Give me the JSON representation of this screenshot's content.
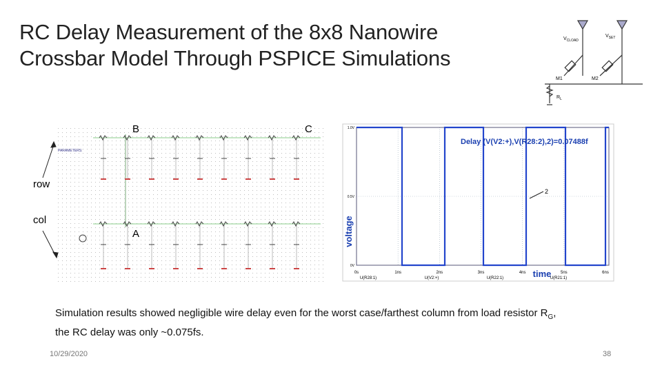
{
  "header": {
    "title_line1": "RC Delay Measurement of the 8x8 Nanowire",
    "title_line2": "Crossbar Model Through PSPICE Simulations"
  },
  "circuit": {
    "v_load": "V",
    "v_load_sub": "CLOAD",
    "v_set": "V",
    "v_set_sub": "SET",
    "m1": "M1",
    "m2": "M2",
    "rl": "R",
    "rl_sub": "L"
  },
  "schematic": {
    "label_b": "B",
    "label_c": "C",
    "label_a": "A",
    "label_row": "row",
    "label_col": "col",
    "parameters": "PARAMETERS:"
  },
  "waveform": {
    "delay": "Delay (V(V2:+),V(R28:2),2)=0.07488f",
    "y_label": "voltage",
    "x_label": "time",
    "marker": "2",
    "y_ticks": [
      "1.0V",
      "0.5V",
      "0V"
    ],
    "x_ticks": [
      "0s",
      "1ns",
      "2ns",
      "3ns",
      "4ns",
      "5ns",
      "6ns"
    ],
    "traces": [
      "U(R28:1)",
      "U(V2:+)",
      "U(R22:1)",
      "U(R21:1)"
    ]
  },
  "caption": {
    "before": "Simulation results showed negligible wire delay even for the worst case/farthest column from load resistor R",
    "sub": "G",
    "after": ",",
    "line2": "the RC delay was only ~0.075fs."
  },
  "footer": {
    "date": "10/29/2020",
    "page": "38"
  }
}
